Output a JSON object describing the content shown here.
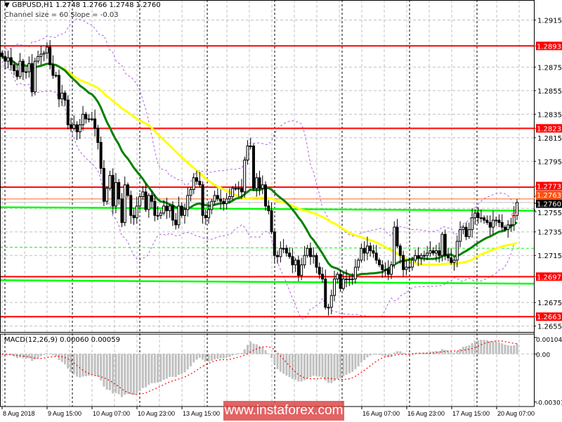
{
  "header": {
    "symbol_line": "GBPUSD,H1  1.2748 1.2766 1.2748 1.2760",
    "indicator_line": "Channel size = 60 Slope = -0.03"
  },
  "macd": {
    "label": "MACD(12,26,9) 0.00060 0.00059",
    "axis_range": [
      -0.0033,
      0.00125
    ],
    "ticks": [
      "0.00104",
      "0.00",
      "-0.00301"
    ],
    "tick_values": [
      0.00104,
      0,
      -0.00301
    ]
  },
  "watermark": "www.instaforex.com",
  "colors": {
    "resistance": "#ff0000",
    "ma_fast": "#008000",
    "ma_slow": "#ffff00",
    "channel": "#00ff00",
    "envelope": "#b060e0",
    "macd_hist": "#c0c0c0",
    "macd_signal": "#ff0000",
    "current_price_bg": "#000000",
    "grid": "#c0c0c0"
  },
  "chart_data": {
    "type": "candlestick",
    "symbol": "GBPUSD",
    "timeframe": "H1",
    "ylim": [
      1.265,
      1.2932
    ],
    "grid": true,
    "price_ticks": [
      "1.2915",
      "1.2875",
      "1.2855",
      "1.2835",
      "1.2815",
      "1.2795",
      "1.2755",
      "1.2735",
      "1.2715",
      "1.2675",
      "1.2655"
    ],
    "levels": [
      {
        "label": "1.2893",
        "value": 1.2893
      },
      {
        "label": "1.2823",
        "value": 1.2823
      },
      {
        "label": "1.2773",
        "value": 1.2773
      },
      {
        "label": "1.2697",
        "value": 1.2697
      },
      {
        "label": "1.2663",
        "value": 1.2663
      }
    ],
    "channel_lines": [
      {
        "from": 1.2756,
        "to": 1.2753,
        "style": "solid"
      },
      {
        "from": 1.2722,
        "to": 1.2721,
        "style": "dashed"
      },
      {
        "from": 1.2694,
        "to": 1.2691,
        "style": "solid"
      }
    ],
    "ask_line": {
      "label": "1.2763",
      "value": 1.2763
    },
    "current_price": {
      "label": "1.2760",
      "value": 1.276
    },
    "x_labels": [
      "8 Aug 2018",
      "9 Aug 15:00",
      "10 Aug 07:00",
      "10 Aug 23:00",
      "13 Aug 15:00",
      "16 Aug 07:00",
      "16 Aug 23:00",
      "17 Aug 15:00",
      "20 Aug 07:00"
    ],
    "closes": [
      1.2884,
      1.288,
      1.2883,
      1.2877,
      1.2872,
      1.2867,
      1.288,
      1.2871,
      1.2871,
      1.2878,
      1.2854,
      1.288,
      1.2884,
      1.2886,
      1.2887,
      1.2892,
      1.2877,
      1.2868,
      1.2868,
      1.2848,
      1.2853,
      1.2847,
      1.2826,
      1.2823,
      1.2826,
      1.282,
      1.2826,
      1.2835,
      1.2831,
      1.2831,
      1.2831,
      1.2823,
      1.2811,
      1.2789,
      1.2761,
      1.2772,
      1.2783,
      1.2757,
      1.2777,
      1.2763,
      1.2743,
      1.2775,
      1.2766,
      1.2749,
      1.2747,
      1.2757,
      1.2765,
      1.2769,
      1.2754,
      1.2766,
      1.2761,
      1.2749,
      1.2749,
      1.2751,
      1.2757,
      1.2753,
      1.2757,
      1.2745,
      1.2741,
      1.2757,
      1.2749,
      1.2754,
      1.2766,
      1.2771,
      1.2781,
      1.2778,
      1.2775,
      1.2749,
      1.2747,
      1.2754,
      1.2761,
      1.2766,
      1.2763,
      1.2761,
      1.2759,
      1.2763,
      1.2765,
      1.2772,
      1.2772,
      1.2772,
      1.2769,
      1.2796,
      1.2808,
      1.2808,
      1.2772,
      1.2781,
      1.2772,
      1.2775,
      1.2757,
      1.2753,
      1.2735,
      1.2715,
      1.2714,
      1.2721,
      1.2721,
      1.2717,
      1.2714,
      1.2707,
      1.2711,
      1.2698,
      1.2707,
      1.2715,
      1.2721,
      1.2714,
      1.2715,
      1.2705,
      1.2699,
      1.2695,
      1.2671,
      1.2671,
      1.2681,
      1.2695,
      1.2699,
      1.2687,
      1.2695,
      1.2695,
      1.2695,
      1.2695,
      1.2705,
      1.2711,
      1.2721,
      1.2717,
      1.2723,
      1.2719,
      1.2717,
      1.2711,
      1.2707,
      1.2703,
      1.2703,
      1.2699,
      1.2707,
      1.2739,
      1.2723,
      1.2715,
      1.2703,
      1.2705,
      1.2705,
      1.2711,
      1.2715,
      1.2713,
      1.2715,
      1.2715,
      1.2717,
      1.2719,
      1.2717,
      1.2719,
      1.2715,
      1.2733,
      1.2715,
      1.2713,
      1.2709,
      1.2711,
      1.2727,
      1.2737,
      1.2739,
      1.2731,
      1.2737,
      1.2747,
      1.2751,
      1.2747,
      1.2747,
      1.2745,
      1.2743,
      1.2739,
      1.2745,
      1.2745,
      1.2743,
      1.2739,
      1.2737,
      1.2741,
      1.2741,
      1.2749,
      1.276
    ]
  }
}
